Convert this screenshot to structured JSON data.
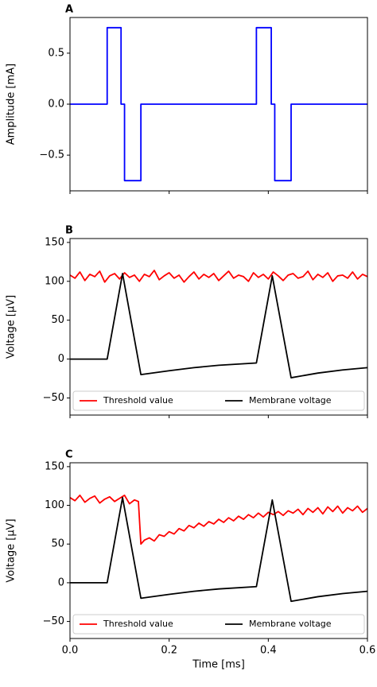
{
  "chart_data": [
    {
      "type": "line",
      "title": "A",
      "ylabel": "Amplitude [mA]",
      "xlim": [
        0,
        0.6
      ],
      "xticks": [
        0,
        0.2,
        0.4,
        0.6
      ],
      "ylim": [
        -0.85,
        0.85
      ],
      "yticks": [
        {
          "value": 0.5,
          "label": "0.5"
        },
        {
          "value": 0,
          "label": "0.0"
        },
        {
          "value": -0.5,
          "label": "−0.5"
        }
      ],
      "series": [
        {
          "color": "#0000ff",
          "x": [
            0,
            0.075,
            0.075,
            0.103,
            0.103,
            0.11,
            0.11,
            0.143,
            0.143,
            0.376,
            0.376,
            0.406,
            0.406,
            0.413,
            0.413,
            0.446,
            0.446,
            0.6
          ],
          "values": [
            0,
            0,
            0.75,
            0.75,
            0,
            0,
            -0.75,
            -0.75,
            0,
            0,
            0.75,
            0.75,
            0,
            0,
            -0.75,
            -0.75,
            0,
            0
          ]
        }
      ]
    },
    {
      "type": "line",
      "title": "B",
      "ylabel": "Voltage [μV]",
      "xlim": [
        0,
        0.6
      ],
      "xticks": [
        0,
        0.2,
        0.4,
        0.6
      ],
      "ylim": [
        -72,
        155
      ],
      "yticks": [
        150,
        100,
        50,
        0,
        {
          "value": -50,
          "label": "−50"
        }
      ],
      "legend": "lower center",
      "series": [
        {
          "name": "Threshold value",
          "color": "#ff0000",
          "x": [
            0,
            0.01,
            0.02,
            0.03,
            0.04,
            0.05,
            0.06,
            0.07,
            0.08,
            0.09,
            0.1,
            0.11,
            0.12,
            0.13,
            0.14,
            0.15,
            0.16,
            0.17,
            0.18,
            0.19,
            0.2,
            0.21,
            0.22,
            0.23,
            0.24,
            0.25,
            0.26,
            0.27,
            0.28,
            0.29,
            0.3,
            0.31,
            0.32,
            0.33,
            0.34,
            0.35,
            0.36,
            0.37,
            0.38,
            0.39,
            0.4,
            0.41,
            0.42,
            0.43,
            0.44,
            0.45,
            0.46,
            0.47,
            0.48,
            0.49,
            0.5,
            0.51,
            0.52,
            0.53,
            0.54,
            0.55,
            0.56,
            0.57,
            0.58,
            0.59,
            0.6
          ],
          "values": [
            108,
            104,
            112,
            101,
            109,
            106,
            113,
            99,
            107,
            110,
            103,
            111,
            105,
            108,
            100,
            109,
            106,
            114,
            102,
            107,
            111,
            104,
            108,
            99,
            106,
            112,
            103,
            109,
            105,
            110,
            101,
            107,
            113,
            104,
            108,
            106,
            100,
            111,
            105,
            109,
            103,
            112,
            107,
            101,
            108,
            110,
            104,
            106,
            113,
            102,
            109,
            105,
            111,
            100,
            107,
            108,
            104,
            112,
            103,
            109,
            106
          ]
        },
        {
          "name": "Membrane voltage",
          "color": "#000000",
          "x": [
            0,
            0.075,
            0.106,
            0.143,
            0.2,
            0.25,
            0.3,
            0.376,
            0.408,
            0.446,
            0.5,
            0.55,
            0.6
          ],
          "values": [
            0,
            0,
            110,
            -20,
            -15,
            -11,
            -8,
            -5,
            107,
            -24,
            -18,
            -14,
            -11
          ]
        }
      ]
    },
    {
      "type": "line",
      "title": "C",
      "ylabel": "Voltage [μV]",
      "xlabel": "Time [ms]",
      "xlim": [
        0,
        0.6
      ],
      "xticks": [
        {
          "value": 0,
          "label": "0.0"
        },
        {
          "value": 0.2,
          "label": "0.2"
        },
        {
          "value": 0.4,
          "label": "0.4"
        },
        {
          "value": 0.6,
          "label": "0.6"
        }
      ],
      "ylim": [
        -72,
        155
      ],
      "yticks": [
        150,
        100,
        50,
        0,
        {
          "value": -50,
          "label": "−50"
        }
      ],
      "legend": "lower center",
      "series": [
        {
          "name": "Threshold value",
          "color": "#ff0000",
          "x": [
            0,
            0.01,
            0.02,
            0.03,
            0.04,
            0.05,
            0.06,
            0.07,
            0.08,
            0.09,
            0.1,
            0.11,
            0.12,
            0.13,
            0.138,
            0.143,
            0.15,
            0.16,
            0.17,
            0.18,
            0.19,
            0.2,
            0.21,
            0.22,
            0.23,
            0.24,
            0.25,
            0.26,
            0.27,
            0.28,
            0.29,
            0.3,
            0.31,
            0.32,
            0.33,
            0.34,
            0.35,
            0.36,
            0.37,
            0.38,
            0.39,
            0.4,
            0.41,
            0.42,
            0.43,
            0.44,
            0.45,
            0.46,
            0.47,
            0.48,
            0.49,
            0.5,
            0.51,
            0.52,
            0.53,
            0.54,
            0.55,
            0.56,
            0.57,
            0.58,
            0.59,
            0.6
          ],
          "values": [
            110,
            106,
            113,
            104,
            109,
            112,
            103,
            108,
            111,
            105,
            109,
            113,
            102,
            107,
            105,
            50,
            55,
            58,
            54,
            62,
            60,
            66,
            63,
            70,
            67,
            74,
            71,
            77,
            73,
            79,
            76,
            82,
            78,
            84,
            80,
            86,
            82,
            88,
            84,
            90,
            85,
            91,
            88,
            92,
            87,
            93,
            90,
            95,
            88,
            96,
            91,
            97,
            89,
            98,
            92,
            99,
            90,
            97,
            93,
            99,
            91,
            96
          ]
        },
        {
          "name": "Membrane voltage",
          "color": "#000000",
          "x": [
            0,
            0.075,
            0.106,
            0.143,
            0.2,
            0.25,
            0.3,
            0.376,
            0.408,
            0.446,
            0.5,
            0.55,
            0.6
          ],
          "values": [
            0,
            0,
            110,
            -20,
            -15,
            -11,
            -8,
            -5,
            107,
            -24,
            -18,
            -14,
            -11
          ]
        }
      ]
    }
  ]
}
